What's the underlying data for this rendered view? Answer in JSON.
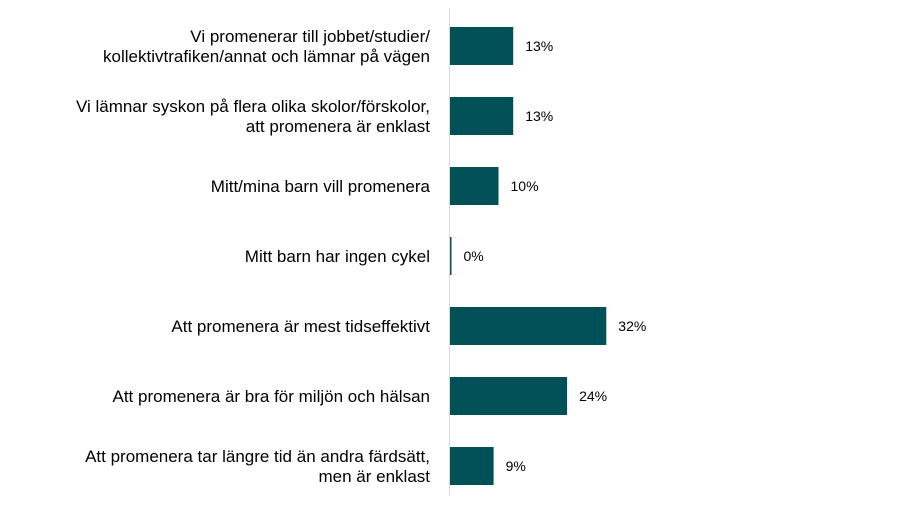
{
  "chart_data": {
    "type": "bar",
    "orientation": "horizontal",
    "categories": [
      [
        "Vi promenerar till jobbet/studier/",
        "kollektivtrafiken/annat och lämnar på vägen"
      ],
      [
        "Vi lämnar syskon på flera olika skolor/förskolor,",
        "att promenera är enklast"
      ],
      [
        "Mitt/mina barn vill promenera"
      ],
      [
        "Mitt barn har ingen cykel"
      ],
      [
        "Att promenera är mest tidseffektivt"
      ],
      [
        "Att promenera är bra för miljön och hälsan"
      ],
      [
        "Att promenera tar längre tid än andra färdsätt,",
        "men är enklast"
      ]
    ],
    "values": [
      13,
      13,
      10,
      0,
      32,
      24,
      9
    ],
    "value_labels": [
      "13%",
      "13%",
      "10%",
      "0%",
      "32%",
      "24%",
      "9%"
    ],
    "unit": "%",
    "xlim": [
      0,
      100
    ],
    "title": "",
    "xlabel": "",
    "ylabel": "",
    "grid": false,
    "legend": "none",
    "bar_color": "#005157",
    "axis_color": "#d9d9d9"
  }
}
